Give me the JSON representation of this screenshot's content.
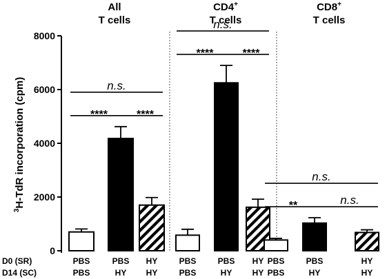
{
  "chart_data": {
    "type": "bar",
    "ylabel_sup": "3",
    "ylabel": "H-TdR incorporation (cpm)",
    "ylim": [
      0,
      8000
    ],
    "yticks": [
      "0",
      "2000",
      "4000",
      "6000",
      "8000"
    ],
    "y_tick_values": [
      0,
      2000,
      4000,
      6000,
      8000
    ],
    "row_labels": [
      "D0 (SR)",
      "D14 (SC)"
    ],
    "groups": [
      {
        "title_line1": "All",
        "title_sup": "",
        "title_line2": "T cells",
        "bars": [
          {
            "row1": "PBS",
            "row2": "PBS",
            "value": 700,
            "error": 110,
            "fill": "white"
          },
          {
            "row1": "PBS",
            "row2": "HY",
            "value": 4180,
            "error": 440,
            "fill": "black"
          },
          {
            "row1": "HY",
            "row2": "HY",
            "value": 1700,
            "error": 280,
            "fill": "hatched"
          }
        ],
        "significance": [
          {
            "from": 0,
            "to": 2,
            "label": "n.s.",
            "level": 2
          },
          {
            "from": 0,
            "to": 1,
            "label": "****",
            "level": 1
          },
          {
            "from": 1,
            "to": 2,
            "label": "****",
            "level": 1
          }
        ]
      },
      {
        "title_line1": "CD4",
        "title_sup": "+",
        "title_line2": "T cells",
        "bars": [
          {
            "row1": "PBS",
            "row2": "PBS",
            "value": 580,
            "error": 220,
            "fill": "white"
          },
          {
            "row1": "PBS",
            "row2": "HY",
            "value": 6250,
            "error": 650,
            "fill": "black"
          },
          {
            "row1": "HY",
            "row2": "HY",
            "value": 1620,
            "error": 300,
            "fill": "hatched"
          }
        ],
        "significance": [
          {
            "from": 0,
            "to": 2,
            "label": "n.s.",
            "level": 2
          },
          {
            "from": 0,
            "to": 1,
            "label": "****",
            "level": 1
          },
          {
            "from": 1,
            "to": 2,
            "label": "****",
            "level": 1
          }
        ]
      },
      {
        "title_line1": "CD8",
        "title_sup": "+",
        "title_line2": "T cells",
        "bars": [
          {
            "row1": "PBS",
            "row2": "PBS",
            "value": 400,
            "error": 60,
            "fill": "white"
          },
          {
            "row1": "PBS",
            "row2": "HY",
            "value": 1030,
            "error": 200,
            "fill": "black"
          },
          {
            "row1": "HY",
            "row2": "HY",
            "value": 680,
            "error": 100,
            "fill": "hatched"
          }
        ],
        "significance": [
          {
            "from": 0,
            "to": 2,
            "label": "n.s.",
            "level": 2
          },
          {
            "from": 0,
            "to": 1,
            "label": "**",
            "level": 1
          },
          {
            "from": 1,
            "to": 2,
            "label": "n.s.",
            "level": 1
          }
        ]
      }
    ]
  }
}
